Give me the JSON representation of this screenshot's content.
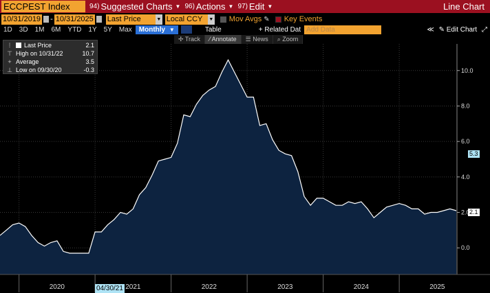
{
  "header": {
    "ticker": "ECCPEST Index",
    "menus": [
      {
        "num": "94)",
        "label": "Suggested Charts"
      },
      {
        "num": "96)",
        "label": "Actions"
      },
      {
        "num": "97)",
        "label": "Edit"
      }
    ],
    "view_label": "Line Chart"
  },
  "controls": {
    "start_date": "10/31/2019",
    "end_date": "10/31/2025",
    "field": "Last Price",
    "currency": "Local CCY",
    "mov_avgs": "Mov Avgs",
    "key_events": "Key Events"
  },
  "periods": [
    "1D",
    "3D",
    "1M",
    "6M",
    "YTD",
    "1Y",
    "5Y",
    "Max"
  ],
  "frequency": "Monthly",
  "table_label": "Table",
  "related_label": "+ Related Dat",
  "add_data_placeholder": "Add Data",
  "edit_chart_label": "Edit Chart",
  "tools": [
    "Track",
    "Annotate",
    "News",
    "Zoom"
  ],
  "legend": {
    "last_price": {
      "label": "Last Price",
      "value": "2.1"
    },
    "high": {
      "label": "High on 10/31/22",
      "value": "10.7"
    },
    "average": {
      "label": "Average",
      "value": "3.5"
    },
    "low": {
      "label": "Low on 09/30/20",
      "value": "-0.3"
    }
  },
  "badges": {
    "ref_value": "5.3",
    "last_value": "2.1",
    "cursor_date": "04/30/21"
  },
  "colors": {
    "header": "#9b1020",
    "orange": "#f2a330",
    "area_fill": "#0d2340",
    "line": "#ffffff",
    "grid": "#3a3a3a",
    "badge_blue": "#aee3f5"
  },
  "chart_data": {
    "type": "area",
    "ylim": [
      -1.5,
      11.5
    ],
    "yticks": [
      0.0,
      2.0,
      4.0,
      6.0,
      8.0,
      10.0
    ],
    "ytick_labels": [
      "0.0",
      "2.0",
      "4.0",
      "6.0",
      "8.0",
      "10.0"
    ],
    "xtick_labels": [
      "2020",
      "2021",
      "2022",
      "2023",
      "2024",
      "2025"
    ],
    "x": [
      "2019-10",
      "2019-11",
      "2019-12",
      "2020-01",
      "2020-02",
      "2020-03",
      "2020-04",
      "2020-05",
      "2020-06",
      "2020-07",
      "2020-08",
      "2020-09",
      "2020-10",
      "2020-11",
      "2020-12",
      "2021-01",
      "2021-02",
      "2021-03",
      "2021-04",
      "2021-05",
      "2021-06",
      "2021-07",
      "2021-08",
      "2021-09",
      "2021-10",
      "2021-11",
      "2021-12",
      "2022-01",
      "2022-02",
      "2022-03",
      "2022-04",
      "2022-05",
      "2022-06",
      "2022-07",
      "2022-08",
      "2022-09",
      "2022-10",
      "2022-11",
      "2022-12",
      "2023-01",
      "2023-02",
      "2023-03",
      "2023-04",
      "2023-05",
      "2023-06",
      "2023-07",
      "2023-08",
      "2023-09",
      "2023-10",
      "2023-11",
      "2023-12",
      "2024-01",
      "2024-02",
      "2024-03",
      "2024-04",
      "2024-05",
      "2024-06",
      "2024-07",
      "2024-08",
      "2024-09",
      "2024-10",
      "2024-11",
      "2024-12",
      "2025-01",
      "2025-02",
      "2025-03",
      "2025-04",
      "2025-05",
      "2025-06",
      "2025-07",
      "2025-08",
      "2025-09",
      "2025-10"
    ],
    "series": [
      {
        "values": [
          0.7,
          1.0,
          1.3,
          1.4,
          1.2,
          0.7,
          0.3,
          0.1,
          0.3,
          0.4,
          -0.2,
          -0.3,
          -0.3,
          -0.3,
          -0.3,
          0.9,
          0.9,
          1.3,
          1.6,
          2.0,
          1.9,
          2.2,
          3.0,
          3.4,
          4.1,
          4.9,
          5.0,
          5.1,
          5.9,
          7.5,
          7.4,
          8.1,
          8.6,
          8.9,
          9.1,
          9.9,
          10.6,
          9.9,
          9.2,
          8.5,
          8.5,
          6.9,
          7.0,
          6.1,
          5.5,
          5.3,
          5.2,
          4.3,
          2.9,
          2.4,
          2.8,
          2.8,
          2.6,
          2.4,
          2.4,
          2.6,
          2.5,
          2.6,
          2.2,
          1.7,
          2.0,
          2.3,
          2.4,
          2.5,
          2.4,
          2.2,
          2.2,
          1.9,
          2.0,
          2.0,
          2.1,
          2.2,
          2.1
        ]
      }
    ]
  }
}
